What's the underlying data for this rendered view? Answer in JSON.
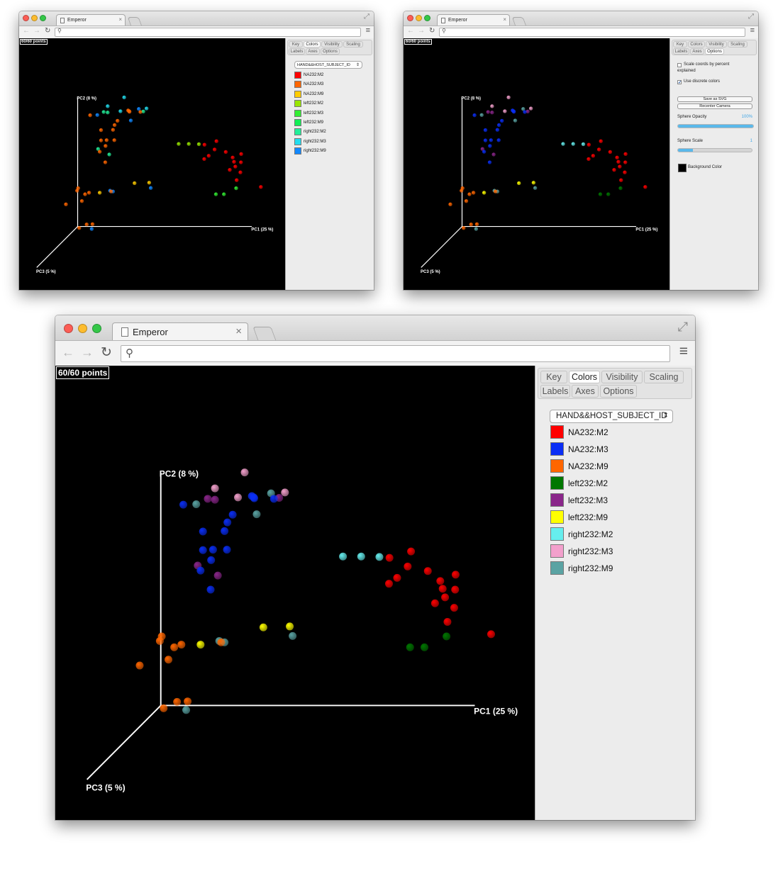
{
  "browser": {
    "tab_title": "Emperor",
    "tab_close": "×",
    "omnibox_value": ""
  },
  "icons": {
    "back": "←",
    "forward": "→",
    "reload": "↻",
    "search": "⚲",
    "menu": "≡",
    "fullscreen": "⤢",
    "select_arrows": "⇕",
    "checkmark": "✓"
  },
  "emperor": {
    "point_count": "60/60 points",
    "tabs": [
      "Key",
      "Colors",
      "Visibility",
      "Scaling",
      "Labels",
      "Axes",
      "Options"
    ],
    "axis_labels": {
      "pc1": "PC1 (25 %)",
      "pc2": "PC2 (8 %)",
      "pc3": "PC3 (5 %)"
    },
    "color_category": "HAND&&HOST_SUBJECT_ID"
  },
  "top_left_window": {
    "active_tab": "Colors",
    "legend": [
      {
        "label": "NA232:M2",
        "color": "#ff0000"
      },
      {
        "label": "NA232:M3",
        "color": "#ff6600"
      },
      {
        "label": "NA232:M9",
        "color": "#ffcc00"
      },
      {
        "label": "left232:M2",
        "color": "#99e600"
      },
      {
        "label": "left232:M3",
        "color": "#33ee33"
      },
      {
        "label": "left232:M9",
        "color": "#11ee55"
      },
      {
        "label": "right232:M2",
        "color": "#22ee99"
      },
      {
        "label": "right232:M3",
        "color": "#22ddee"
      },
      {
        "label": "right232:M9",
        "color": "#1188ff"
      }
    ]
  },
  "top_right_window": {
    "active_tab": "Options",
    "options": {
      "scale_coords_line1": "Scale coords by percent",
      "scale_coords_line2": "explained",
      "scale_coords_checked": false,
      "discrete_colors": "Use discrete colors",
      "discrete_colors_checked": true,
      "save_svg": "Save as SVG",
      "recenter_camera": "Recenter Camera",
      "sphere_opacity": "Sphere Opacity",
      "sphere_opacity_value": "100%",
      "sphere_opacity_level": 1.0,
      "sphere_scale": "Sphere Scale",
      "sphere_scale_value": "1",
      "sphere_scale_level": 0.2,
      "background_color": "Background Color",
      "background_color_value": "#000000"
    }
  },
  "main_window": {
    "active_tab": "Colors",
    "legend": [
      {
        "label": "NA232:M2",
        "color": "#ff0000"
      },
      {
        "label": "NA232:M3",
        "color": "#0a2ef5"
      },
      {
        "label": "NA232:M9",
        "color": "#ff6600"
      },
      {
        "label": "left232:M2",
        "color": "#007700"
      },
      {
        "label": "left232:M3",
        "color": "#8a268a"
      },
      {
        "label": "left232:M9",
        "color": "#ffff00"
      },
      {
        "label": "right232:M2",
        "color": "#66eeee"
      },
      {
        "label": "right232:M3",
        "color": "#f3a0cc"
      },
      {
        "label": "right232:M9",
        "color": "#5aa3a3"
      }
    ]
  }
}
